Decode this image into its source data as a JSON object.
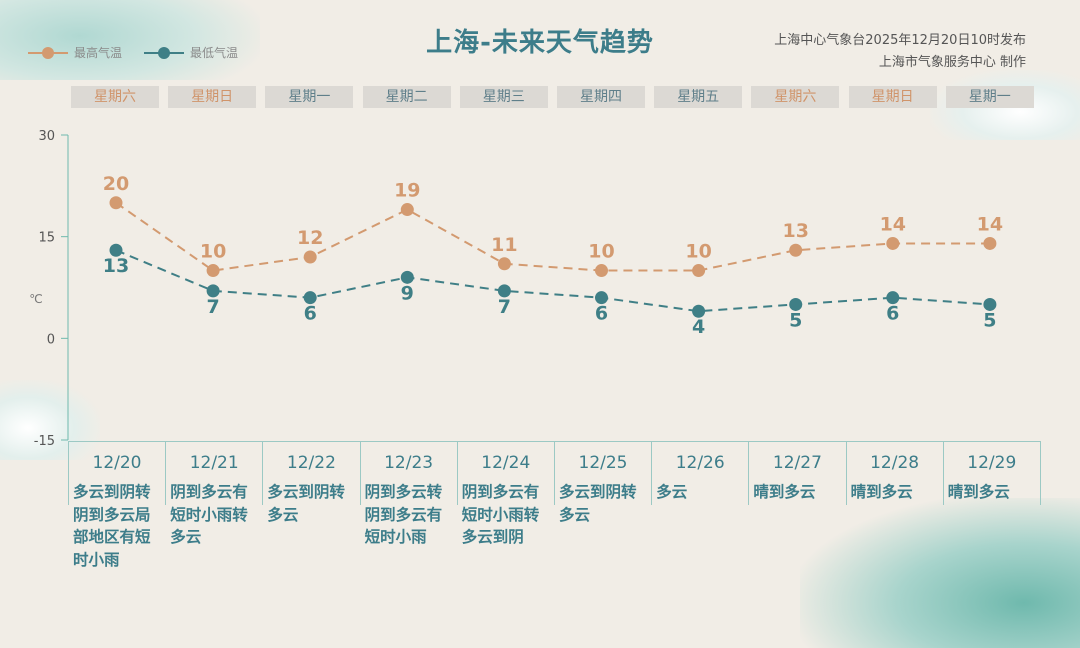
{
  "title": "上海-未来天气趋势",
  "legend": {
    "max_label": "最高气温",
    "min_label": "最低气温"
  },
  "issuer": {
    "line1": "上海中心气象台2025年12月20日10时发布",
    "line2": "上海市气象服务中心  制作"
  },
  "colors": {
    "max": "#d39a70",
    "min": "#3f7f86",
    "axis": "#6fb9ad",
    "title": "#3d7d8a"
  },
  "chart_data": {
    "type": "line",
    "ylabel": "℃",
    "ylim": [
      -15,
      30
    ],
    "yticks": [
      30,
      15,
      0,
      -15
    ],
    "categories": [
      "12/20",
      "12/21",
      "12/22",
      "12/23",
      "12/24",
      "12/25",
      "12/26",
      "12/27",
      "12/28",
      "12/29"
    ],
    "weekdays": [
      "星期六",
      "星期日",
      "星期一",
      "星期二",
      "星期三",
      "星期四",
      "星期五",
      "星期六",
      "星期日",
      "星期一"
    ],
    "weekend": [
      true,
      true,
      false,
      false,
      false,
      false,
      false,
      true,
      true,
      false
    ],
    "series": [
      {
        "name": "最高气温",
        "values": [
          20,
          10,
          12,
          19,
          11,
          10,
          10,
          13,
          14,
          14
        ]
      },
      {
        "name": "最低气温",
        "values": [
          13,
          7,
          6,
          9,
          7,
          6,
          4,
          5,
          6,
          5
        ]
      }
    ],
    "weather": [
      "多云到阴转阴到多云局部地区有短时小雨",
      "阴到多云有短时小雨转多云",
      "多云到阴转多云",
      "阴到多云转阴到多云有短时小雨",
      "阴到多云有短时小雨转多云到阴",
      "多云到阴转多云",
      "多云",
      "晴到多云",
      "晴到多云",
      "晴到多云"
    ]
  }
}
